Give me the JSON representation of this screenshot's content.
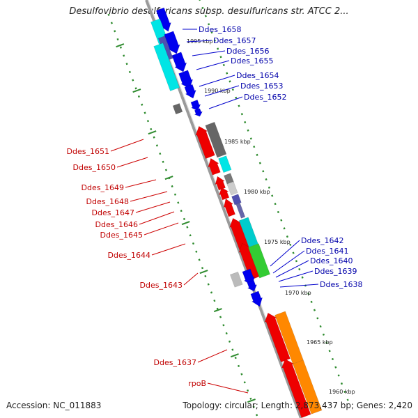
{
  "title": "Desulfovibrio desulfuricans subsp. desulfuricans str. ATCC 2...",
  "footer": {
    "accession": "Accession: NC_011883",
    "topology": "Topology: circular; Length: 2,873,437 bp; Genes: 2,420"
  },
  "colors": {
    "forward_label": "#c00000",
    "reverse_label": "#0000aa",
    "backbone": "#888888",
    "dots": "#2e8b2e"
  },
  "tick_labels": [
    "1995 kbp",
    "1990 kbp",
    "1985 kbp",
    "1980 kbp",
    "1975 kbp",
    "1970 kbp",
    "1965 kbp",
    "1960 kbp"
  ],
  "reverse_genes": [
    "Ddes_1658",
    "Ddes_1657",
    "Ddes_1656",
    "Ddes_1655",
    "Ddes_1654",
    "Ddes_1653",
    "Ddes_1652",
    "Ddes_1642",
    "Ddes_1641",
    "Ddes_1640",
    "Ddes_1639",
    "Ddes_1638"
  ],
  "forward_genes": [
    "Ddes_1651",
    "Ddes_1650",
    "Ddes_1649",
    "Ddes_1648",
    "Ddes_1647",
    "Ddes_1646",
    "Ddes_1645",
    "Ddes_1644",
    "Ddes_1643",
    "Ddes_1637",
    "rpoB"
  ]
}
